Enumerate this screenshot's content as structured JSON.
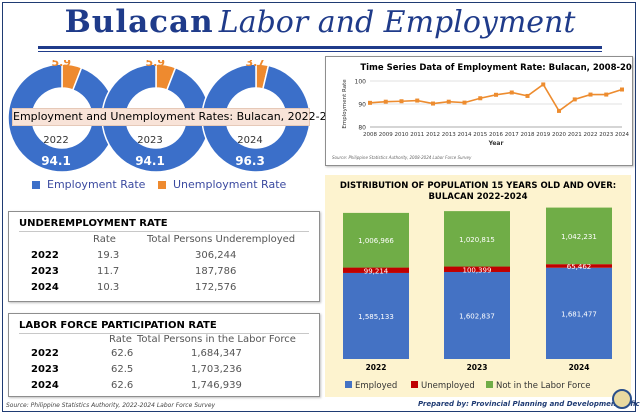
{
  "title": {
    "part1": "Bulacan",
    "part2": "Labor and Employment"
  },
  "donuts": {
    "banner": "Employment and Unemployment Rates: Bulacan, 2022-2024",
    "items": [
      {
        "year": "2022",
        "employment": 94.1,
        "unemployment": 5.9,
        "employment_label": "94.1",
        "unemployment_label": "5.9"
      },
      {
        "year": "2023",
        "employment": 94.1,
        "unemployment": 5.9,
        "employment_label": "94.1",
        "unemployment_label": "5.9"
      },
      {
        "year": "2024",
        "employment": 96.3,
        "unemployment": 3.7,
        "employment_label": "96.3",
        "unemployment_label": "3.7"
      }
    ],
    "legend": {
      "employment": "Employment Rate",
      "unemployment": "Unemployment Rate"
    }
  },
  "colors": {
    "employment": "#3b6fc9",
    "unemployment": "#ee8a2f",
    "line": "#ed8c2f",
    "employed_bar": "#4472c4",
    "unemployed_bar": "#c00000",
    "not_in_lf_bar": "#70ad47",
    "title_blue": "#1f3b8a"
  },
  "underemployment": {
    "title": "UNDEREMPLOYMENT RATE",
    "col_rate": "Rate",
    "col_total": "Total Persons Underemployed",
    "rows": [
      {
        "year": "2022",
        "rate": "19.3",
        "total": "306,244"
      },
      {
        "year": "2023",
        "rate": "11.7",
        "total": "187,786"
      },
      {
        "year": "2024",
        "rate": "10.3",
        "total": "172,576"
      }
    ]
  },
  "lfpr": {
    "title": "LABOR FORCE PARTICIPATION RATE",
    "col_rate": "Rate",
    "col_total": "Total Persons in the Labor Force",
    "rows": [
      {
        "year": "2022",
        "rate": "62.6",
        "total": "1,684,347"
      },
      {
        "year": "2023",
        "rate": "62.5",
        "total": "1,703,236"
      },
      {
        "year": "2024",
        "rate": "62.6",
        "total": "1,746,939"
      }
    ]
  },
  "footer": {
    "source": "Source: Philippine Statistics Authority, 2022-2024 Labor Force Survey",
    "prepared": "Prepared by: Provincial Planning and Development Office"
  },
  "chart_data": [
    {
      "type": "line",
      "title": "Time Series Data of Employment Rate: Bulacan, 2008-2024",
      "xlabel": "Year",
      "ylabel": "Employment Rate",
      "x": [
        "2008",
        "2009",
        "2010",
        "2011",
        "2012",
        "2013",
        "2014",
        "2015",
        "2016",
        "2017",
        "2018",
        "2019",
        "2020",
        "2021",
        "2022",
        "2023",
        "2024"
      ],
      "series": [
        {
          "name": "Employment Rate",
          "values": [
            90.5,
            91.0,
            91.2,
            91.5,
            90.2,
            91.0,
            90.6,
            92.5,
            94.0,
            95.0,
            93.5,
            98.5,
            87.0,
            92.0,
            94.1,
            94.1,
            96.3
          ]
        }
      ],
      "yticks": [
        80,
        90,
        100
      ],
      "ylim": [
        80,
        100
      ],
      "grid": true,
      "source": "Source: Philippine Statistics Authority, 2008-2024 Labor Force Survey"
    },
    {
      "type": "bar",
      "stacked": true,
      "title": "DISTRIBUTION OF POPULATION  15  YEARS OLD AND OVER:",
      "subtitle": "BULACAN  2022-2024",
      "categories": [
        "2022",
        "2023",
        "2024"
      ],
      "series": [
        {
          "name": "Employed",
          "values": [
            1585133,
            1602837,
            1681477
          ],
          "labels": [
            "1,585,133",
            "1,602,837",
            "1,681,477"
          ]
        },
        {
          "name": "Unemployed",
          "values": [
            99214,
            100399,
            65462
          ],
          "labels": [
            "99,214",
            "100,399",
            "65,462"
          ]
        },
        {
          "name": "Not in the Labor Force",
          "values": [
            1006966,
            1020815,
            1042231
          ],
          "labels": [
            "1,006,966",
            "1,020,815",
            "1,042,231"
          ]
        }
      ],
      "legend": "bottom"
    }
  ]
}
